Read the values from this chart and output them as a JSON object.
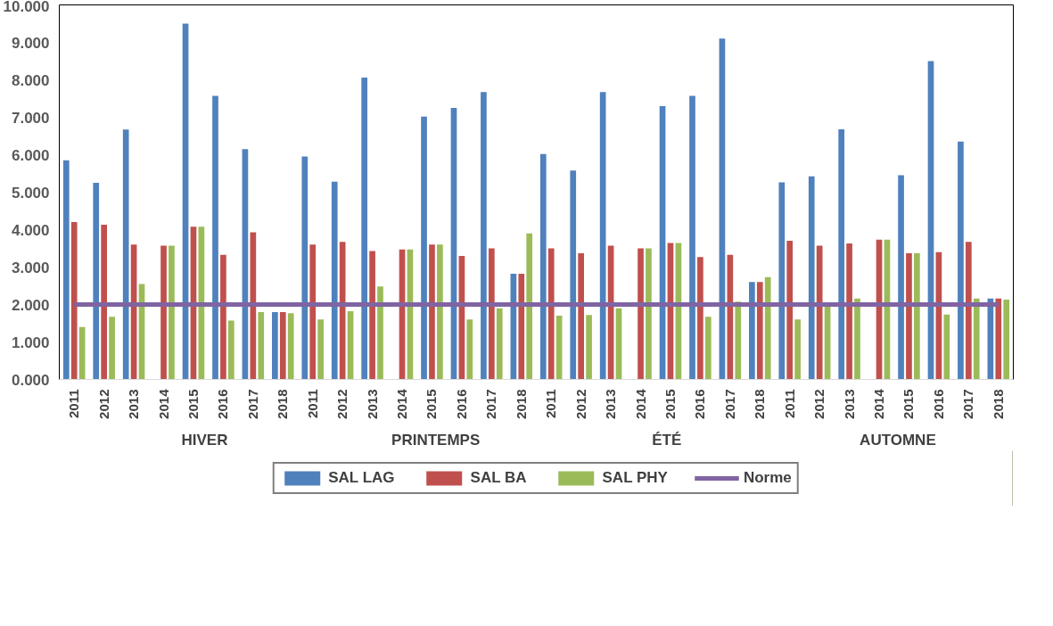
{
  "chart_data": {
    "type": "bar",
    "categories": [
      "2011",
      "2012",
      "2013",
      "2014",
      "2015",
      "2016",
      "2017",
      "2018",
      "2011",
      "2012",
      "2013",
      "2014",
      "2015",
      "2016",
      "2017",
      "2018",
      "2011",
      "2012",
      "2013",
      "2014",
      "2015",
      "2016",
      "2017",
      "2018",
      "2011",
      "2012",
      "2013",
      "2014",
      "2015",
      "2016",
      "2017",
      "2018"
    ],
    "series": [
      {
        "name": "SAL LAG",
        "color": "#4f81bd",
        "values": [
          5.85,
          5.25,
          6.67,
          null,
          9.5,
          7.57,
          6.15,
          1.8,
          5.95,
          5.28,
          8.06,
          null,
          7.02,
          7.25,
          7.67,
          2.82,
          6.02,
          5.58,
          7.67,
          null,
          7.3,
          7.57,
          9.1,
          2.6,
          5.26,
          5.42,
          6.68,
          null,
          5.45,
          8.5,
          6.35,
          2.16
        ]
      },
      {
        "name": "SAL BA",
        "color": "#c0504d",
        "values": [
          4.2,
          4.13,
          3.6,
          3.57,
          4.08,
          3.33,
          3.93,
          1.8,
          3.6,
          3.67,
          3.43,
          3.47,
          3.6,
          3.3,
          3.5,
          2.82,
          3.5,
          3.37,
          3.57,
          3.5,
          3.64,
          3.27,
          3.33,
          2.6,
          3.7,
          3.57,
          3.63,
          3.73,
          3.37,
          3.4,
          3.67,
          2.16
        ]
      },
      {
        "name": "SAL PHY",
        "color": "#9bbb59",
        "values": [
          1.4,
          1.67,
          2.55,
          3.57,
          4.08,
          1.57,
          1.8,
          1.77,
          1.6,
          1.82,
          2.48,
          3.47,
          3.6,
          1.6,
          1.9,
          3.9,
          1.7,
          1.72,
          1.9,
          3.5,
          3.64,
          1.67,
          2.08,
          2.73,
          1.6,
          1.97,
          2.16,
          3.73,
          3.37,
          1.73,
          2.16,
          2.13
        ]
      },
      {
        "name": "Norme",
        "type": "line",
        "color": "#8064a2",
        "values": [
          2,
          2,
          2,
          2,
          2,
          2,
          2,
          2,
          2,
          2,
          2,
          2,
          2,
          2,
          2,
          2,
          2,
          2,
          2,
          2,
          2,
          2,
          2,
          2,
          2,
          2,
          2,
          2,
          2,
          2,
          2,
          2
        ]
      }
    ],
    "annotations": [
      "HIVER",
      "PRINTEMPS",
      "ÉTÉ",
      "AUTOMNE"
    ],
    "ylim": [
      0,
      10
    ],
    "yticks": [
      {
        "value": 0,
        "label": "0.000"
      },
      {
        "value": 1,
        "label": "1.000"
      },
      {
        "value": 2,
        "label": "2.000"
      },
      {
        "value": 3,
        "label": "3.000"
      },
      {
        "value": 4,
        "label": "4.000"
      },
      {
        "value": 5,
        "label": "5.000"
      },
      {
        "value": 6,
        "label": "6.000"
      },
      {
        "value": 7,
        "label": "7.000"
      },
      {
        "value": 8,
        "label": "8.000"
      },
      {
        "value": 9,
        "label": "9.000"
      },
      {
        "value": 10,
        "label": "10.000"
      }
    ],
    "grid": false,
    "legend": "bottom"
  }
}
